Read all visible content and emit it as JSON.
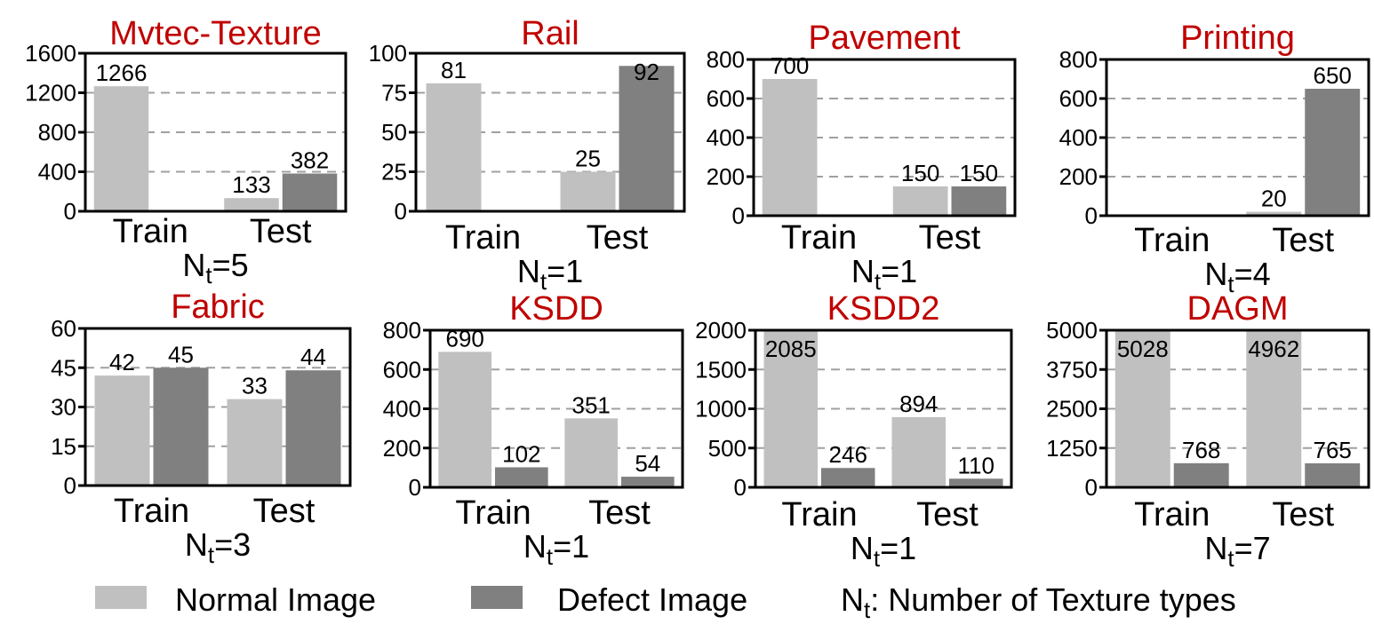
{
  "colors": {
    "normal": "#c0c0c0",
    "defect": "#808080",
    "title": "#c00000",
    "grid": "#a0a0a0"
  },
  "legend": {
    "normal_label": "Normal Image",
    "defect_label": "Defect Image",
    "nt_prefix": "N",
    "nt_sub": "t",
    "nt_text": ": Number of Texture types"
  },
  "chart_data": [
    {
      "type": "bar",
      "title": "Mvtec-Texture",
      "categories": [
        "Train",
        "Test"
      ],
      "series": [
        {
          "name": "Normal Image",
          "values": [
            1266,
            133
          ]
        },
        {
          "name": "Defect Image",
          "values": [
            0,
            382
          ]
        }
      ],
      "labels": [
        [
          "1266",
          "133"
        ],
        [
          "",
          "382"
        ]
      ],
      "ylim": [
        0,
        1600
      ],
      "yticks": [
        "0",
        "400",
        "800",
        "1200",
        "1600"
      ],
      "ytick_values": [
        0,
        400,
        800,
        1200,
        1600
      ],
      "axis_side": "left",
      "nt_value": "5",
      "grid": true
    },
    {
      "type": "bar",
      "title": "Rail",
      "categories": [
        "Train",
        "Test"
      ],
      "series": [
        {
          "name": "Normal Image",
          "values": [
            81,
            25
          ]
        },
        {
          "name": "Defect Image",
          "values": [
            0,
            92
          ]
        }
      ],
      "labels": [
        [
          "81",
          "25"
        ],
        [
          "",
          "92"
        ]
      ],
      "ylim": [
        0,
        100
      ],
      "yticks": [
        "0",
        "25",
        "50",
        "75",
        "100"
      ],
      "ytick_values": [
        0,
        25,
        50,
        75,
        100
      ],
      "axis_side": "left",
      "nt_value": "1",
      "grid": true
    },
    {
      "type": "bar",
      "title": "Pavement",
      "categories": [
        "Train",
        "Test"
      ],
      "series": [
        {
          "name": "Normal Image",
          "values": [
            700,
            150
          ]
        },
        {
          "name": "Defect Image",
          "values": [
            0,
            150
          ]
        }
      ],
      "labels": [
        [
          "700",
          "150"
        ],
        [
          "",
          "150"
        ]
      ],
      "ylim": [
        0,
        800
      ],
      "yticks": [
        "0",
        "200",
        "400",
        "600",
        "800"
      ],
      "ytick_values": [
        0,
        200,
        400,
        600,
        800
      ],
      "axis_side": "left",
      "nt_value": "1",
      "grid": true
    },
    {
      "type": "bar",
      "title": "Printing",
      "categories": [
        "Train",
        "Test"
      ],
      "series": [
        {
          "name": "Normal Image",
          "values": [
            0,
            20
          ]
        },
        {
          "name": "Defect Image",
          "values": [
            0,
            650
          ]
        }
      ],
      "labels": [
        [
          "",
          "20"
        ],
        [
          "",
          "650"
        ]
      ],
      "ylim": [
        0,
        800
      ],
      "yticks": [
        "0",
        "200",
        "400",
        "600",
        "800"
      ],
      "ytick_values": [
        0,
        200,
        400,
        600,
        800
      ],
      "axis_side": "left",
      "nt_value": "4",
      "grid": true
    },
    {
      "type": "bar",
      "title": "Fabric",
      "categories": [
        "Train",
        "Test"
      ],
      "series": [
        {
          "name": "Normal Image",
          "values": [
            42,
            33
          ]
        },
        {
          "name": "Defect Image",
          "values": [
            45,
            44
          ]
        }
      ],
      "labels": [
        [
          "42",
          "33"
        ],
        [
          "45",
          "44"
        ]
      ],
      "ylim": [
        0,
        60
      ],
      "yticks": [
        "0",
        "15",
        "30",
        "45",
        "60"
      ],
      "ytick_values": [
        0,
        15,
        30,
        45,
        60
      ],
      "axis_side": "left",
      "nt_value": "3",
      "grid": true
    },
    {
      "type": "bar",
      "title": "KSDD",
      "categories": [
        "Train",
        "Test"
      ],
      "series": [
        {
          "name": "Normal Image",
          "values": [
            690,
            351
          ]
        },
        {
          "name": "Defect Image",
          "values": [
            102,
            54
          ]
        }
      ],
      "labels": [
        [
          "690",
          "351"
        ],
        [
          "102",
          "54"
        ]
      ],
      "ylim": [
        0,
        800
      ],
      "yticks": [
        "0",
        "200",
        "400",
        "600",
        "800"
      ],
      "ytick_values": [
        0,
        200,
        400,
        600,
        800
      ],
      "axis_side": "left",
      "nt_value": "1",
      "grid": true
    },
    {
      "type": "bar",
      "title": "KSDD2",
      "categories": [
        "Train",
        "Test"
      ],
      "series": [
        {
          "name": "Normal Image",
          "values": [
            2085,
            894
          ]
        },
        {
          "name": "Defect Image",
          "values": [
            246,
            110
          ]
        }
      ],
      "labels": [
        [
          "2085",
          "894"
        ],
        [
          "246",
          "110"
        ]
      ],
      "ylim": [
        0,
        2000
      ],
      "yticks": [
        "0",
        "500",
        "1000",
        "1500",
        "2000"
      ],
      "ytick_values": [
        0,
        500,
        1000,
        1500,
        2000
      ],
      "axis_side": "left",
      "nt_value": "1",
      "grid": true
    },
    {
      "type": "bar",
      "title": "DAGM",
      "categories": [
        "Train",
        "Test"
      ],
      "series": [
        {
          "name": "Normal Image",
          "values": [
            5028,
            4962
          ]
        },
        {
          "name": "Defect Image",
          "values": [
            768,
            765
          ]
        }
      ],
      "labels": [
        [
          "5028",
          "4962"
        ],
        [
          "768",
          "765"
        ]
      ],
      "ylim": [
        0,
        5000
      ],
      "yticks": [
        "0",
        "1250",
        "2500",
        "3750",
        "5000"
      ],
      "ytick_values": [
        0,
        1250,
        2500,
        3750,
        5000
      ],
      "axis_side": "left",
      "nt_value": "7",
      "grid": true
    }
  ]
}
